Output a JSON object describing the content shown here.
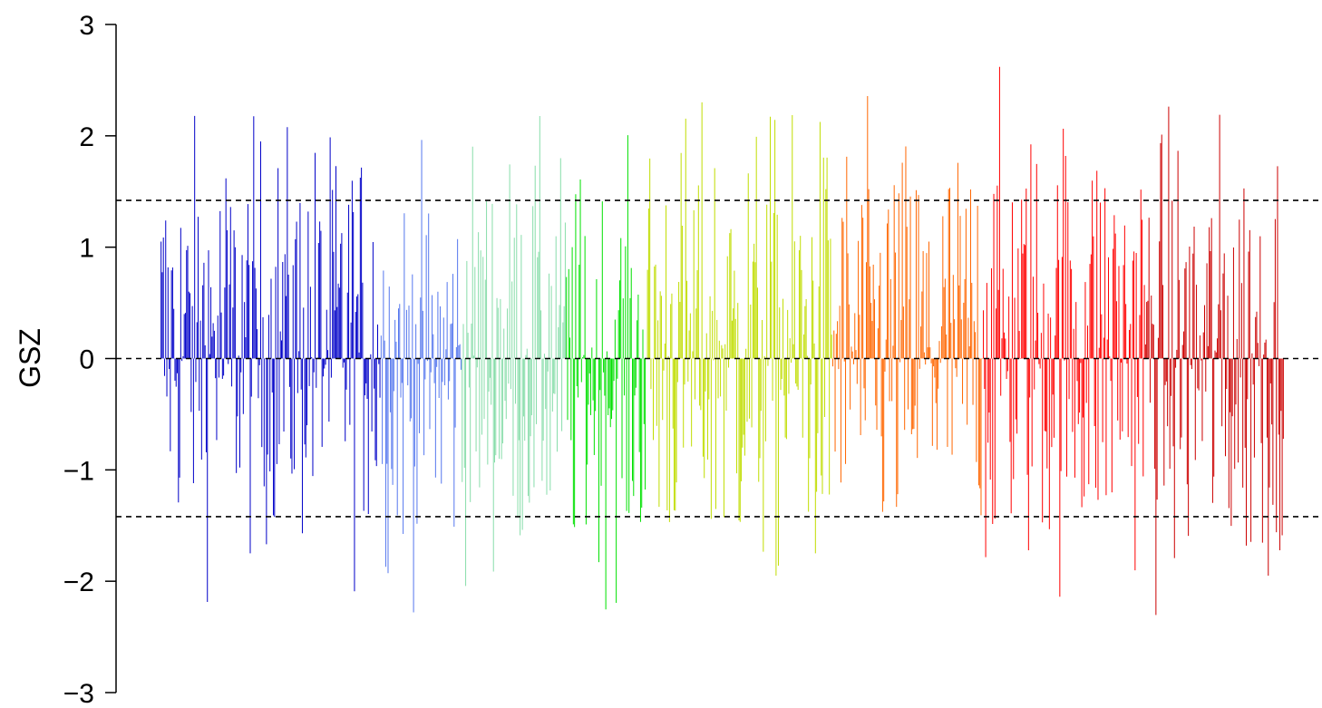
{
  "chart_data": {
    "type": "bar",
    "ylabel": "GSZ",
    "ylim": [
      -3,
      3
    ],
    "yticks": [
      {
        "value": 3,
        "label": "3"
      },
      {
        "value": 2,
        "label": "2"
      },
      {
        "value": 1,
        "label": "1"
      },
      {
        "value": 0,
        "label": "0"
      },
      {
        "value": -1,
        "label": "−1"
      },
      {
        "value": -2,
        "label": "−2"
      },
      {
        "value": -3,
        "label": "−3"
      }
    ],
    "reference_lines": [
      1.42,
      0,
      -1.42
    ],
    "segments": [
      {
        "color": "#0000c8",
        "bars": 190,
        "mean": 0.15,
        "spread": 0.9
      },
      {
        "color": "#5577ee",
        "bars": 70,
        "mean": -0.1,
        "spread": 0.85
      },
      {
        "color": "#88ddaa",
        "bars": 90,
        "mean": 0.0,
        "spread": 0.9
      },
      {
        "color": "#00e000",
        "bars": 70,
        "mean": -0.15,
        "spread": 0.85
      },
      {
        "color": "#c0dd00",
        "bars": 160,
        "mean": 0.05,
        "spread": 1.0
      },
      {
        "color": "#ff6600",
        "bars": 130,
        "mean": 0.05,
        "spread": 0.95
      },
      {
        "color": "#ff0000",
        "bars": 140,
        "mean": 0.15,
        "spread": 1.0
      },
      {
        "color": "#cc0000",
        "bars": 120,
        "mean": 0.0,
        "spread": 1.0
      }
    ]
  }
}
